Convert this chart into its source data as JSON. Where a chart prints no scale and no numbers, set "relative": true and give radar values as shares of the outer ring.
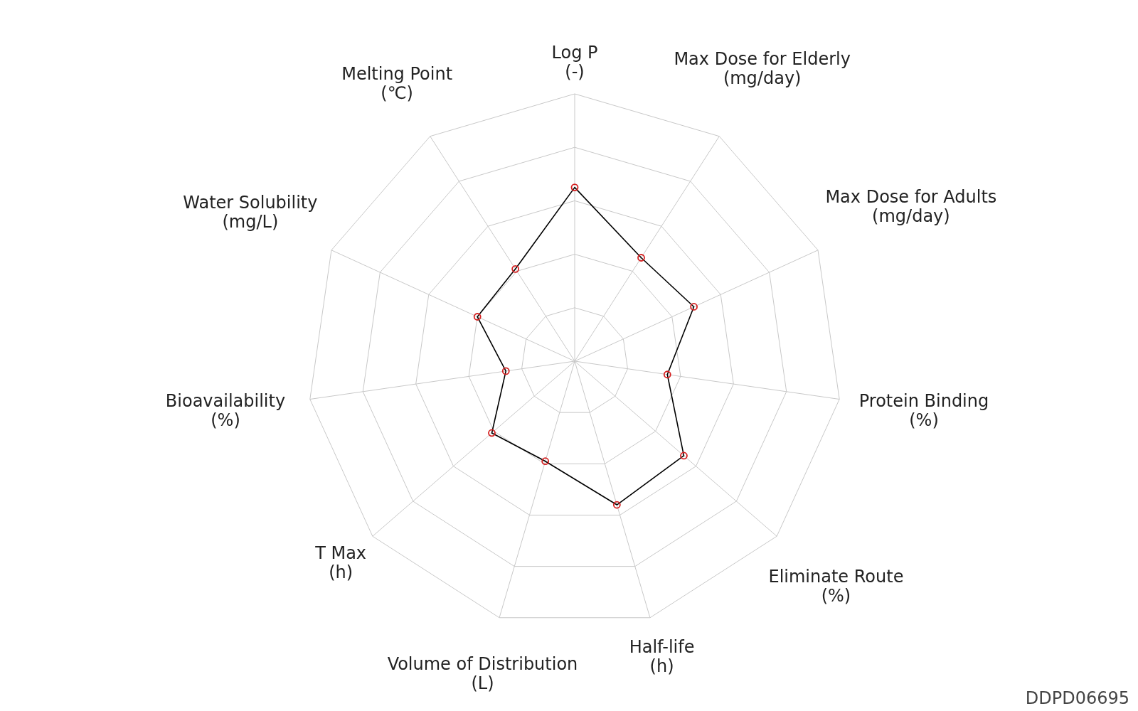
{
  "chart_data": {
    "type": "radar",
    "relative": true,
    "categories": [
      "Log P\n(-)",
      "Max Dose for Elderly\n(mg/day)",
      "Max Dose for Adults\n(mg/day)",
      "Protein Binding\n(%)",
      "Eliminate Route\n(%)",
      "Half-life\n(h)",
      "Volume of Distribution\n(L)",
      "T Max\n(h)",
      "Bioavailability\n(%)",
      "Water Solubility\n(mg/L)",
      "Melting Point\n(℃)"
    ],
    "series": [
      {
        "color": "#000000",
        "values": [
          0.65,
          0.46,
          0.49,
          0.35,
          0.54,
          0.56,
          0.39,
          0.41,
          0.26,
          0.4,
          0.41
        ]
      }
    ],
    "marker": "circle",
    "legend": false,
    "annotations": [
      "DDPD06695"
    ]
  }
}
